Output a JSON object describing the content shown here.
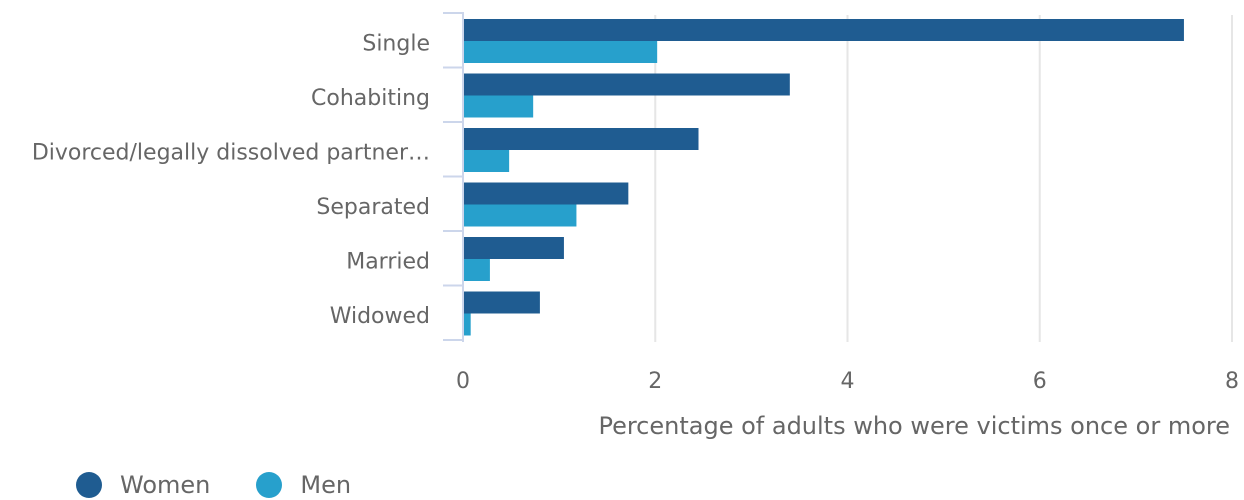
{
  "chart_data": {
    "type": "bar",
    "orientation": "horizontal",
    "categories": [
      "Single",
      "Cohabiting",
      "Divorced/legally dissolved partner…",
      "Separated",
      "Married",
      "Widowed"
    ],
    "series": [
      {
        "name": "Women",
        "color": "#1f5c91",
        "values": [
          7.5,
          3.4,
          2.45,
          1.72,
          1.05,
          0.8
        ]
      },
      {
        "name": "Men",
        "color": "#27a0cc",
        "values": [
          2.02,
          0.73,
          0.48,
          1.18,
          0.28,
          0.08
        ]
      }
    ],
    "xlabel": "Percentage of adults who were victims once or more",
    "ylabel": "",
    "xlim": [
      0,
      8
    ],
    "xticks": [
      0,
      2,
      4,
      6,
      8
    ],
    "grid": true,
    "legend_position": "bottom-left"
  }
}
